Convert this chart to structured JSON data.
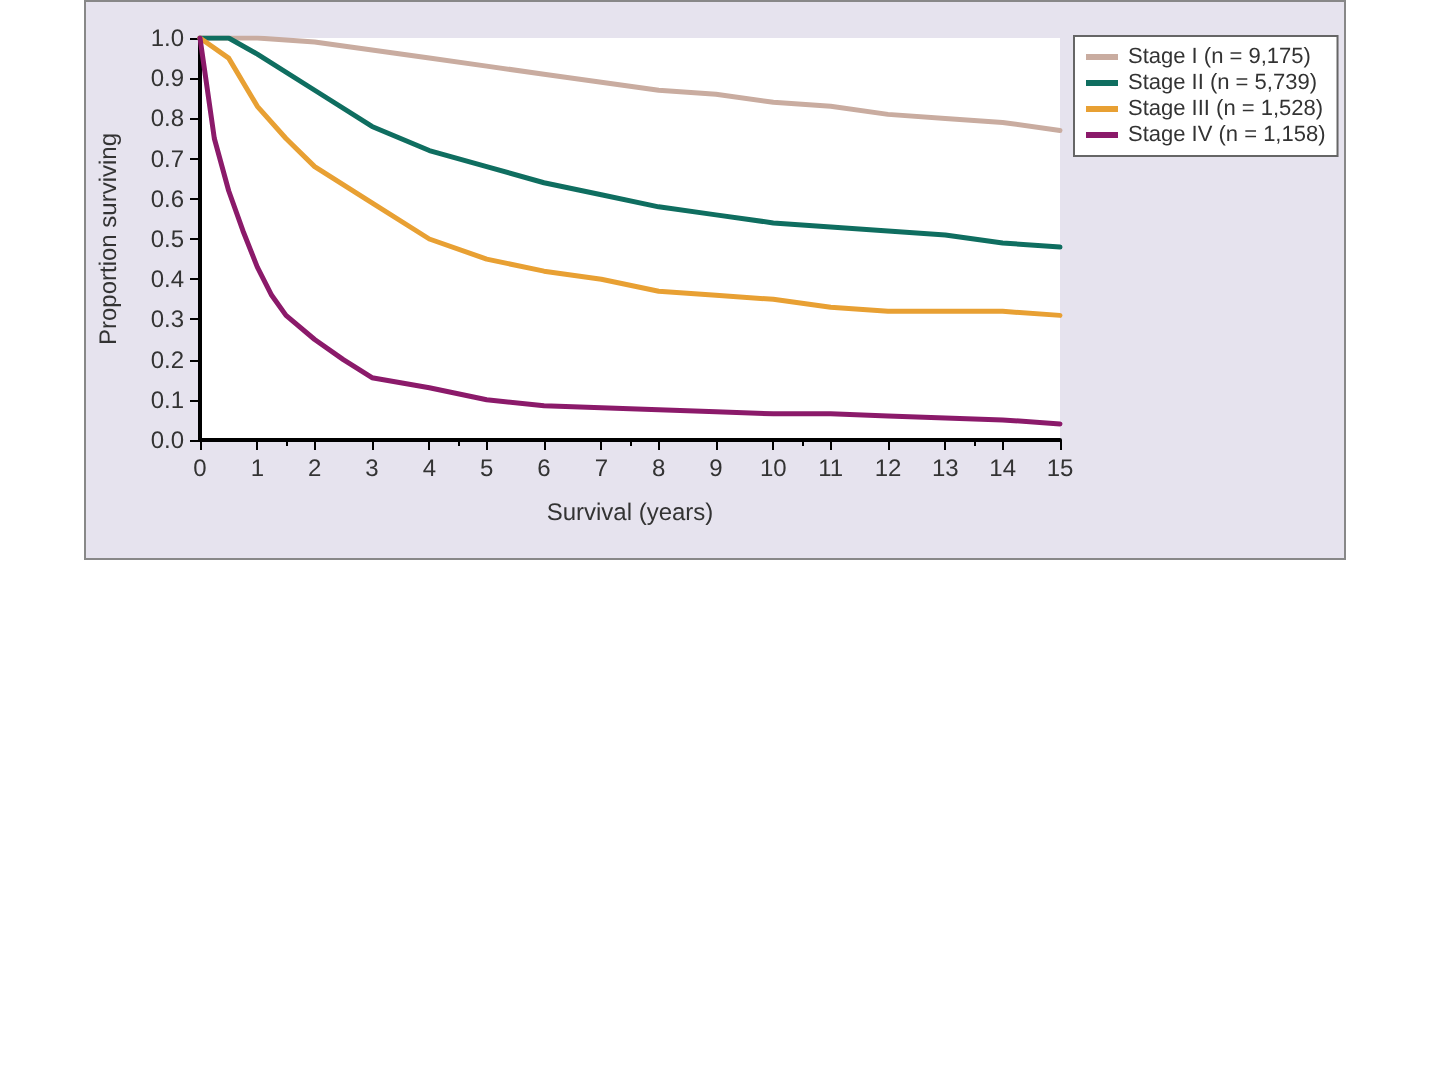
{
  "chart_data": {
    "type": "line",
    "xlabel": "Survival (years)",
    "ylabel": "Proportion surviving",
    "xlim": [
      0,
      15
    ],
    "xticks": [
      0,
      1,
      2,
      3,
      4,
      5,
      6,
      7,
      8,
      9,
      10,
      11,
      12,
      13,
      14,
      15
    ],
    "ylim": [
      0,
      1
    ],
    "yticks": [
      {
        "value": 0,
        "label": "0.0"
      },
      {
        "value": 0.1,
        "label": "0.1"
      },
      {
        "value": 0.2,
        "label": "0.2"
      },
      {
        "value": 0.3,
        "label": "0.3"
      },
      {
        "value": 0.4,
        "label": "0.4"
      },
      {
        "value": 0.5,
        "label": "0.5"
      },
      {
        "value": 0.6,
        "label": "0.6"
      },
      {
        "value": 0.7,
        "label": "0.7"
      },
      {
        "value": 0.8,
        "label": "0.8"
      },
      {
        "value": 0.9,
        "label": "0.9"
      },
      {
        "value": 1,
        "label": "1.0"
      }
    ],
    "grid": false,
    "legend": "top right",
    "marker": "none",
    "line_style": "solid",
    "series": [
      {
        "name": "Stage I (n = 9,175)",
        "color": "#c9aca0",
        "x": [
          0,
          1,
          2,
          3,
          4,
          5,
          6,
          7,
          8,
          9,
          10,
          11,
          12,
          13,
          14,
          15
        ],
        "values": [
          1.0,
          1.0,
          0.99,
          0.97,
          0.95,
          0.93,
          0.91,
          0.89,
          0.87,
          0.86,
          0.84,
          0.83,
          0.81,
          0.8,
          0.79,
          0.77
        ]
      },
      {
        "name": "Stage II (n = 5,739)",
        "color": "#0f6e60",
        "x": [
          0,
          0.5,
          1,
          2,
          3,
          4,
          5,
          6,
          7,
          8,
          9,
          10,
          11,
          12,
          13,
          14,
          15
        ],
        "values": [
          1.0,
          1.0,
          0.96,
          0.87,
          0.78,
          0.72,
          0.68,
          0.64,
          0.61,
          0.58,
          0.56,
          0.54,
          0.53,
          0.52,
          0.51,
          0.49,
          0.48
        ]
      },
      {
        "name": "Stage III (n = 1,528)",
        "color": "#e8a033",
        "x": [
          0,
          0.5,
          1,
          1.5,
          2,
          3,
          4,
          5,
          6,
          7,
          8,
          9,
          10,
          11,
          12,
          13,
          14,
          15
        ],
        "values": [
          1.0,
          0.95,
          0.83,
          0.75,
          0.68,
          0.59,
          0.5,
          0.45,
          0.42,
          0.4,
          0.37,
          0.36,
          0.35,
          0.33,
          0.32,
          0.32,
          0.32,
          0.31
        ]
      },
      {
        "name": "Stage IV (n = 1,158)",
        "color": "#8b1a6a",
        "x": [
          0,
          0.1,
          0.25,
          0.5,
          0.75,
          1,
          1.25,
          1.5,
          2,
          2.5,
          3,
          4,
          5,
          6,
          7,
          8,
          9,
          10,
          11,
          12,
          13,
          14,
          15
        ],
        "values": [
          1.0,
          0.9,
          0.75,
          0.62,
          0.52,
          0.43,
          0.36,
          0.31,
          0.25,
          0.2,
          0.155,
          0.13,
          0.1,
          0.085,
          0.08,
          0.075,
          0.07,
          0.065,
          0.065,
          0.06,
          0.055,
          0.05,
          0.04
        ]
      }
    ]
  }
}
